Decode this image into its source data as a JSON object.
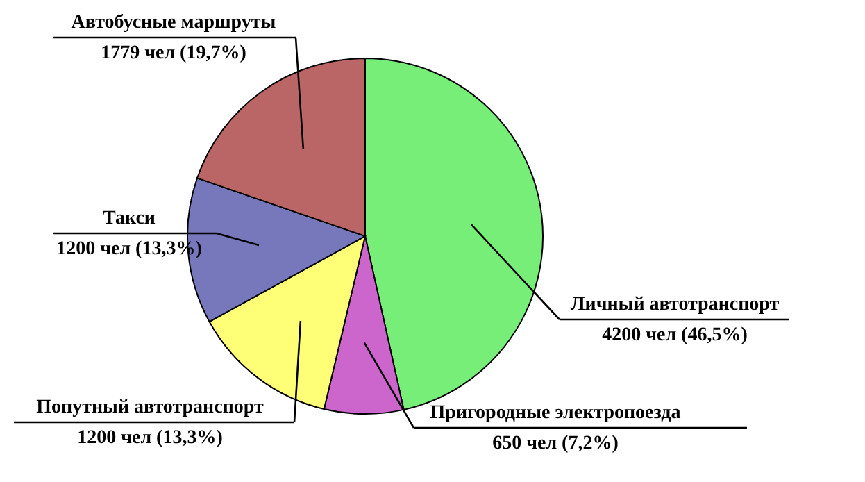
{
  "chart_data": {
    "type": "pie",
    "categories": [
      "Личный автотранспорт",
      "Пригородные электропоезда",
      "Попутный автотранспорт",
      "Такси",
      "Автобусные маршруты"
    ],
    "values": [
      4200,
      650,
      1200,
      1200,
      1779
    ],
    "value_labels": [
      "4200 чел (46,5%)",
      "650 чел (7,2%)",
      "1200 чел (13,3%)",
      "1200 чел (13,3%)",
      "1779 чел (19,7%)"
    ],
    "colors": [
      "#77ee77",
      "#cc66cc",
      "#ffff77",
      "#7777bb",
      "#bb6666"
    ],
    "legend": false
  }
}
